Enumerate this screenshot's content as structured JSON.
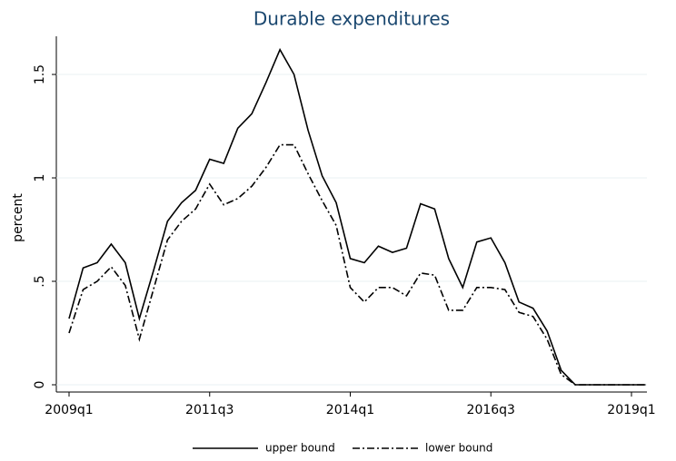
{
  "chart_data": {
    "type": "line",
    "title": "Durable expenditures",
    "y_label": "percent",
    "categories": [
      "2009q1",
      null,
      null,
      null,
      null,
      null,
      null,
      null,
      null,
      null,
      "2011q3",
      null,
      null,
      null,
      null,
      null,
      null,
      null,
      null,
      null,
      "2014q1",
      null,
      null,
      null,
      null,
      null,
      null,
      null,
      null,
      null,
      "2016q3",
      null,
      null,
      null,
      null,
      null,
      null,
      null,
      null,
      null,
      "2019q1",
      null
    ],
    "series": [
      {
        "name": "upper bound",
        "color": "#000000",
        "dash": "solid",
        "values": [
          0.32,
          0.565,
          0.59,
          0.68,
          0.59,
          0.32,
          0.55,
          0.79,
          0.88,
          0.94,
          1.09,
          1.07,
          1.24,
          1.31,
          1.46,
          1.62,
          1.5,
          1.23,
          1.01,
          0.88,
          0.61,
          0.59,
          0.67,
          0.64,
          0.66,
          0.875,
          0.85,
          0.61,
          0.47,
          0.69,
          0.71,
          0.59,
          0.4,
          0.37,
          0.26,
          0.07,
          0,
          0,
          0,
          0,
          0,
          0
        ]
      },
      {
        "name": "lower bound",
        "color": "#000000",
        "dash": "dash-dot",
        "values": [
          0.25,
          0.46,
          0.5,
          0.57,
          0.48,
          0.22,
          0.46,
          0.7,
          0.79,
          0.85,
          0.97,
          0.87,
          0.9,
          0.96,
          1.05,
          1.16,
          1.16,
          1.02,
          0.89,
          0.77,
          0.47,
          0.4,
          0.47,
          0.47,
          0.43,
          0.54,
          0.53,
          0.36,
          0.36,
          0.47,
          0.47,
          0.46,
          0.35,
          0.33,
          0.22,
          0.05,
          0,
          0,
          0,
          0,
          0,
          0
        ]
      }
    ],
    "ylim": [
      0,
      1.68
    ],
    "yticks": [
      0,
      {
        "value": 0.5,
        "label": ".5"
      },
      1,
      1.5
    ],
    "grid": true,
    "legend": "bottom"
  }
}
